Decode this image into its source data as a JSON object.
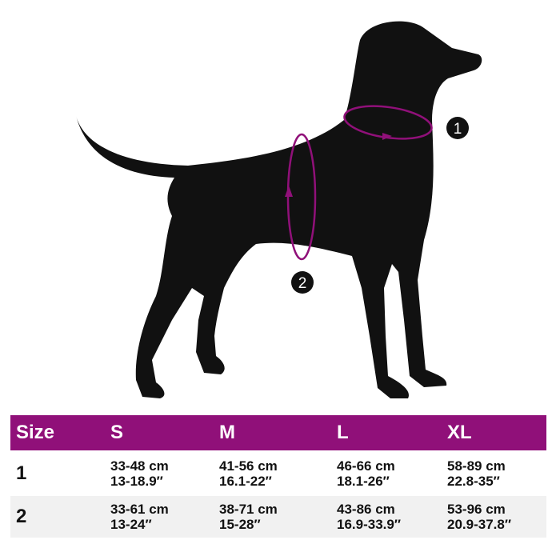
{
  "colors": {
    "accent": "#901079",
    "silhouette": "#111111",
    "row_alt": "#f1f1f1"
  },
  "markers": [
    {
      "label": "1",
      "measures": "neck"
    },
    {
      "label": "2",
      "measures": "chest"
    }
  ],
  "table": {
    "headers": [
      "Size",
      "S",
      "M",
      "L",
      "XL"
    ],
    "rows": [
      {
        "label": "1",
        "cells": [
          [
            "33-48 cm",
            "13-18.9″"
          ],
          [
            "41-56 cm",
            "16.1-22″"
          ],
          [
            "46-66 cm",
            "18.1-26″"
          ],
          [
            "58-89 cm",
            "22.8-35″"
          ]
        ]
      },
      {
        "label": "2",
        "cells": [
          [
            "33-61 cm",
            "13-24″"
          ],
          [
            "38-71 cm",
            "15-28″"
          ],
          [
            "43-86 cm",
            "16.9-33.9″"
          ],
          [
            "53-96 cm",
            "20.9-37.8″"
          ]
        ]
      }
    ]
  }
}
